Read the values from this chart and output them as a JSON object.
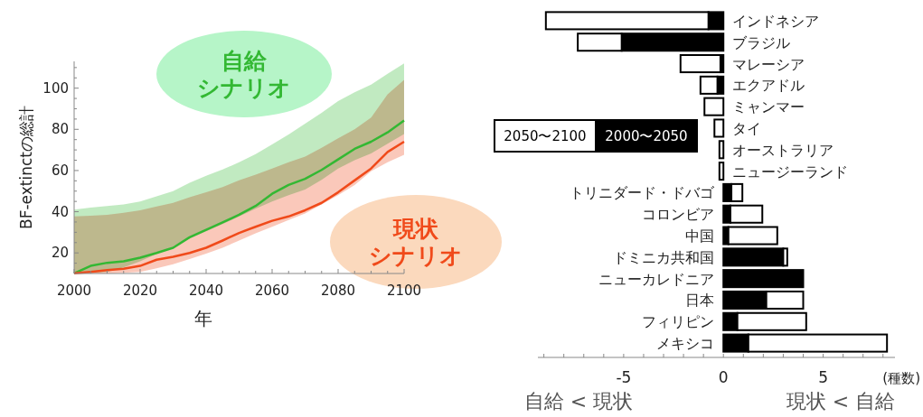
{
  "chart_data": [
    {
      "type": "line",
      "ylabel": "BF-extinctの総計",
      "xlabel": "年",
      "xlim": [
        2000,
        2100
      ],
      "ylim": [
        10,
        113
      ],
      "xticks": [
        2000,
        {
          "value": 2005,
          "label": null
        },
        {
          "value": 2010,
          "label": null
        },
        {
          "value": 2015,
          "label": null
        },
        2020,
        {
          "value": 2025,
          "label": null
        },
        {
          "value": 2030,
          "label": null
        },
        {
          "value": 2035,
          "label": null
        },
        2040,
        {
          "value": 2045,
          "label": null
        },
        {
          "value": 2050,
          "label": null
        },
        {
          "value": 2055,
          "label": null
        },
        2060,
        {
          "value": 2065,
          "label": null
        },
        {
          "value": 2070,
          "label": null
        },
        {
          "value": 2075,
          "label": null
        },
        2080,
        {
          "value": 2085,
          "label": null
        },
        {
          "value": 2090,
          "label": null
        },
        {
          "value": 2095,
          "label": null
        },
        2100
      ],
      "yticks": [
        {
          "value": 15,
          "label": null
        },
        20,
        {
          "value": 25,
          "label": null
        },
        {
          "value": 30,
          "label": null
        },
        {
          "value": 35,
          "label": null
        },
        40,
        {
          "value": 45,
          "label": null
        },
        {
          "value": 50,
          "label": null
        },
        {
          "value": 55,
          "label": null
        },
        60,
        {
          "value": 65,
          "label": null
        },
        {
          "value": 70,
          "label": null
        },
        {
          "value": 75,
          "label": null
        },
        80,
        {
          "value": 85,
          "label": null
        },
        {
          "value": 90,
          "label": null
        },
        {
          "value": 95,
          "label": null
        },
        100,
        {
          "value": 105,
          "label": null
        },
        {
          "value": 110,
          "label": null
        }
      ],
      "x": [
        2000,
        2005,
        2010,
        2015,
        2020,
        2025,
        2030,
        2035,
        2040,
        2045,
        2050,
        2055,
        2060,
        2065,
        2070,
        2075,
        2080,
        2085,
        2090,
        2095,
        2100
      ],
      "grid": false,
      "legend": false,
      "marker": "none",
      "line_style": "solid",
      "series": [
        {
          "name": "自給シナリオ",
          "color": "#33b833",
          "values": [
            10.1,
            13.7,
            15.2,
            15.9,
            17.7,
            20,
            22.5,
            27.6,
            31.2,
            34.8,
            38.5,
            42.8,
            48.7,
            53,
            56,
            60.3,
            65.4,
            70.5,
            74,
            78.5,
            84.3
          ],
          "lower": [
            10,
            10.3,
            10.8,
            13,
            15.9,
            19.5,
            23.2,
            27,
            30.5,
            34,
            37.7,
            41.5,
            45,
            48,
            50.8,
            55.5,
            61,
            65,
            68.3,
            73,
            77.7
          ],
          "upper": [
            41,
            42,
            42.8,
            43.5,
            45,
            47.5,
            50,
            54,
            57.4,
            60.5,
            64,
            68,
            72.7,
            77.5,
            82.8,
            88,
            93.7,
            98,
            101.7,
            107,
            112
          ]
        },
        {
          "name": "現状シナリオ",
          "color": "#f04a1a",
          "values": [
            10.1,
            10.8,
            11.6,
            12.3,
            13.7,
            16.7,
            18.1,
            20,
            22.5,
            26,
            29.7,
            32.7,
            35.6,
            37.7,
            40.7,
            44.3,
            49.4,
            55.2,
            61,
            69,
            74
          ],
          "lower": [
            10,
            10,
            10,
            10.3,
            10.8,
            12.5,
            14.5,
            17,
            19.6,
            22.5,
            26,
            29.5,
            32.7,
            36,
            39.2,
            43.5,
            48,
            53,
            59.6,
            64,
            67.6
          ],
          "upper": [
            37.7,
            38,
            38.5,
            39.5,
            40.7,
            42.5,
            44.3,
            47,
            49.4,
            52,
            55.2,
            58,
            61,
            64,
            66.8,
            71,
            75.6,
            80,
            85.7,
            97,
            104
          ]
        }
      ]
    },
    {
      "type": "bar",
      "orientation": "horizontal",
      "stacked": true,
      "xlabel": "(種数)",
      "xlim": [
        -9.3,
        8.6
      ],
      "xticks": [
        {
          "value": -9,
          "label": null
        },
        {
          "value": -8,
          "label": null
        },
        {
          "value": -7,
          "label": null
        },
        {
          "value": -6,
          "label": null
        },
        -5,
        {
          "value": -4,
          "label": null
        },
        {
          "value": -3,
          "label": null
        },
        {
          "value": -2,
          "label": null
        },
        {
          "value": -1,
          "label": null
        },
        0,
        {
          "value": 1,
          "label": null
        },
        {
          "value": 2,
          "label": null
        },
        {
          "value": 3,
          "label": null
        },
        {
          "value": 4,
          "label": null
        },
        5,
        {
          "value": 6,
          "label": null
        },
        {
          "value": 7,
          "label": null
        },
        {
          "value": 8,
          "label": null
        }
      ],
      "grid": false,
      "legend": "left",
      "categories": [
        "インドネシア",
        "ブラジル",
        "マレーシア",
        "エクアドル",
        "ミャンマー",
        "タイ",
        "オーストラリア",
        "ニュージーランド",
        "トリニダード・ドバゴ",
        "コロンビア",
        "中国",
        "ドミニカ共和国",
        "ニューカレドニア",
        "日本",
        "フィリピン",
        "メキシコ"
      ],
      "series": [
        {
          "name": "2000〜2050",
          "color": "#000000",
          "values": [
            -0.75,
            -5.1,
            -0.15,
            -0.3,
            0,
            0,
            0,
            0,
            0.4,
            0.35,
            0.25,
            3.0,
            4.0,
            2.15,
            0.7,
            1.25
          ]
        },
        {
          "name": "2050〜2100",
          "color": "#ffffff",
          "values": [
            -8.15,
            -2.2,
            -2.0,
            -0.85,
            -0.95,
            -0.45,
            -0.2,
            -0.2,
            0.55,
            1.6,
            2.45,
            0.2,
            0,
            1.85,
            3.45,
            6.95
          ]
        }
      ],
      "annotations": [
        "自給 < 現状",
        "現状 < 自給"
      ]
    }
  ]
}
